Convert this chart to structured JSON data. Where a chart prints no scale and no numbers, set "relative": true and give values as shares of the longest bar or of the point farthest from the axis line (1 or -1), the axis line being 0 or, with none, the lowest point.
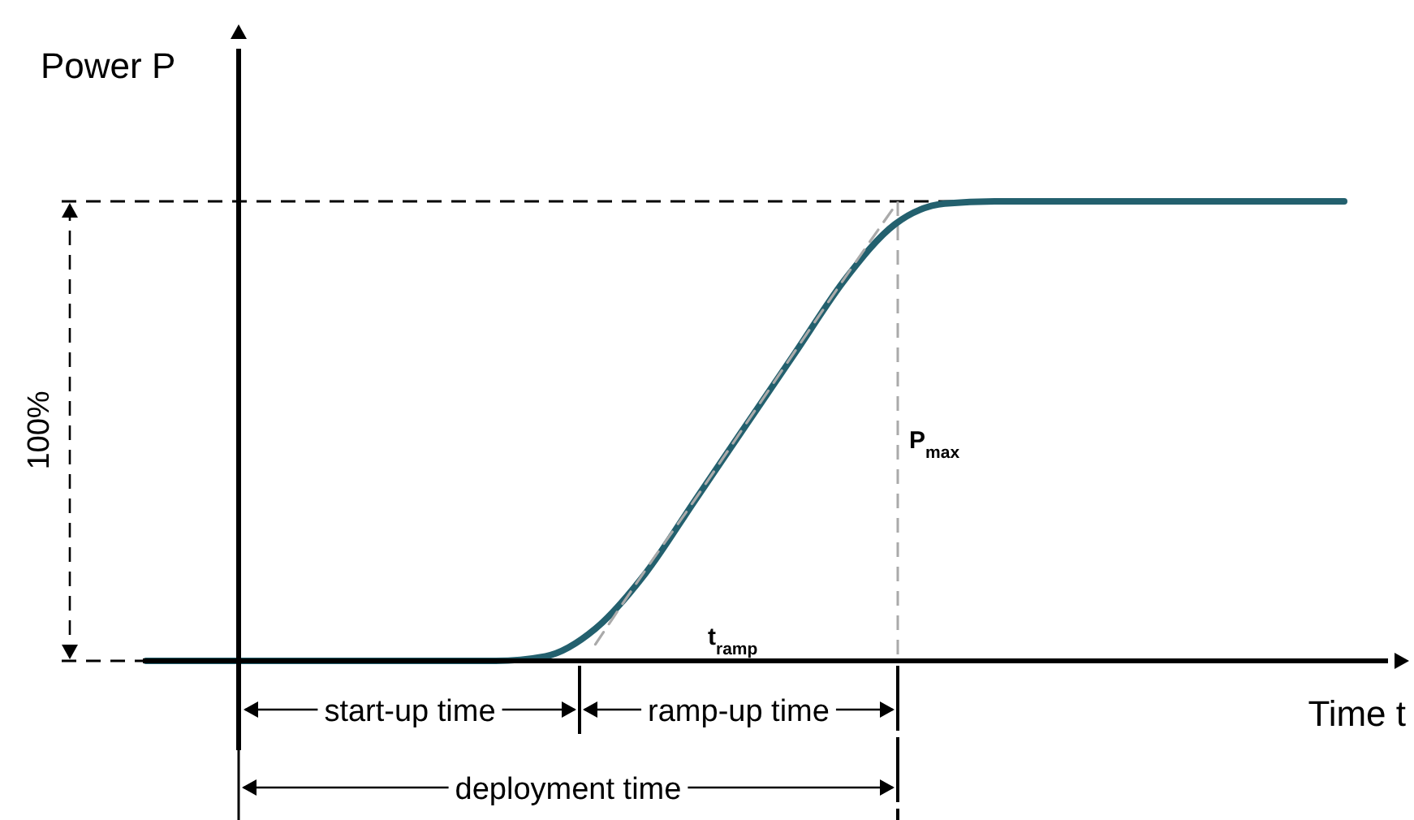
{
  "chart_data": {
    "type": "line",
    "relative": true,
    "xlabel": "Time t",
    "ylabel": "Power P",
    "categories": [
      null,
      null,
      null,
      null,
      null,
      null,
      null,
      null,
      null,
      null,
      null,
      null,
      null,
      null,
      null,
      null,
      null,
      null,
      null,
      null,
      null,
      null,
      null,
      null,
      null
    ],
    "series": [
      {
        "color": "#23606e",
        "values": [
          0,
          0,
          0,
          0,
          0,
          0,
          0,
          0,
          0.01,
          0.07,
          0.19,
          0.35,
          0.51,
          0.67,
          0.83,
          0.95,
          0.995,
          1,
          1,
          1,
          1,
          1,
          1,
          1,
          1
        ]
      },
      {
        "color": "#aaaaaa",
        "line_style": "dashed",
        "values": [
          null,
          null,
          null,
          null,
          null,
          null,
          null,
          null,
          null,
          0.036,
          0.197,
          0.352,
          0.513,
          0.674,
          0.834,
          0.99,
          null,
          null,
          null,
          null,
          null,
          null,
          null,
          null,
          null
        ]
      }
    ],
    "ref_lines": [
      {
        "axis": "y",
        "value": 1,
        "line_style": "dashed",
        "color": "#000000"
      },
      {
        "axis": "y",
        "value": 0,
        "line_style": "dashed",
        "color": "#000000"
      }
    ],
    "annotations": [
      "100%",
      "P$_{max}$",
      "t$_{ramp}$",
      "start-up time",
      "ramp-up time",
      "deployment time"
    ]
  }
}
